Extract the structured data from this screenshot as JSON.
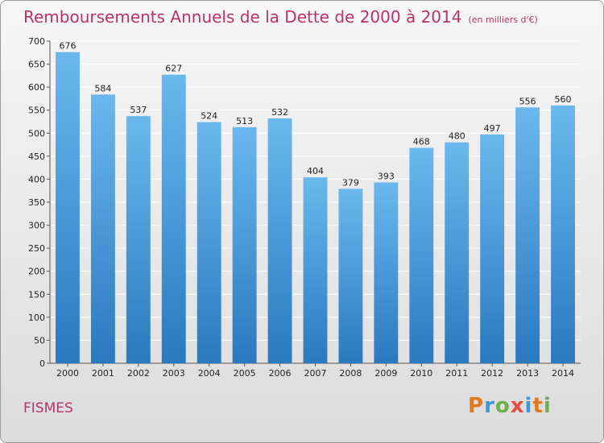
{
  "header": {
    "title": "Remboursements Annuels de la Dette de 2000 à 2014",
    "unit": "(en milliers d'€)"
  },
  "footer": {
    "location": "FISMES",
    "logo": [
      "P",
      "r",
      "o",
      "x",
      "i",
      "t",
      "i"
    ]
  },
  "colors": {
    "title": "#b8336a",
    "bar_top": "#6bb8ee",
    "bar_bottom": "#2a79bf",
    "grid": "#ffffff"
  },
  "chart_data": {
    "type": "bar",
    "title": "Remboursements Annuels de la Dette de 2000 à 2014",
    "subtitle": "(en milliers d'€)",
    "xlabel": "",
    "ylabel": "",
    "categories": [
      "2000",
      "2001",
      "2002",
      "2003",
      "2004",
      "2005",
      "2006",
      "2007",
      "2008",
      "2009",
      "2010",
      "2011",
      "2012",
      "2013",
      "2014"
    ],
    "values": [
      676,
      584,
      537,
      627,
      524,
      513,
      532,
      404,
      379,
      393,
      468,
      480,
      497,
      556,
      560
    ],
    "ylim": [
      0,
      700
    ],
    "yticks": [
      0,
      50,
      100,
      150,
      200,
      250,
      300,
      350,
      400,
      450,
      500,
      550,
      600,
      650,
      700
    ],
    "grid": true,
    "legend": "none"
  }
}
